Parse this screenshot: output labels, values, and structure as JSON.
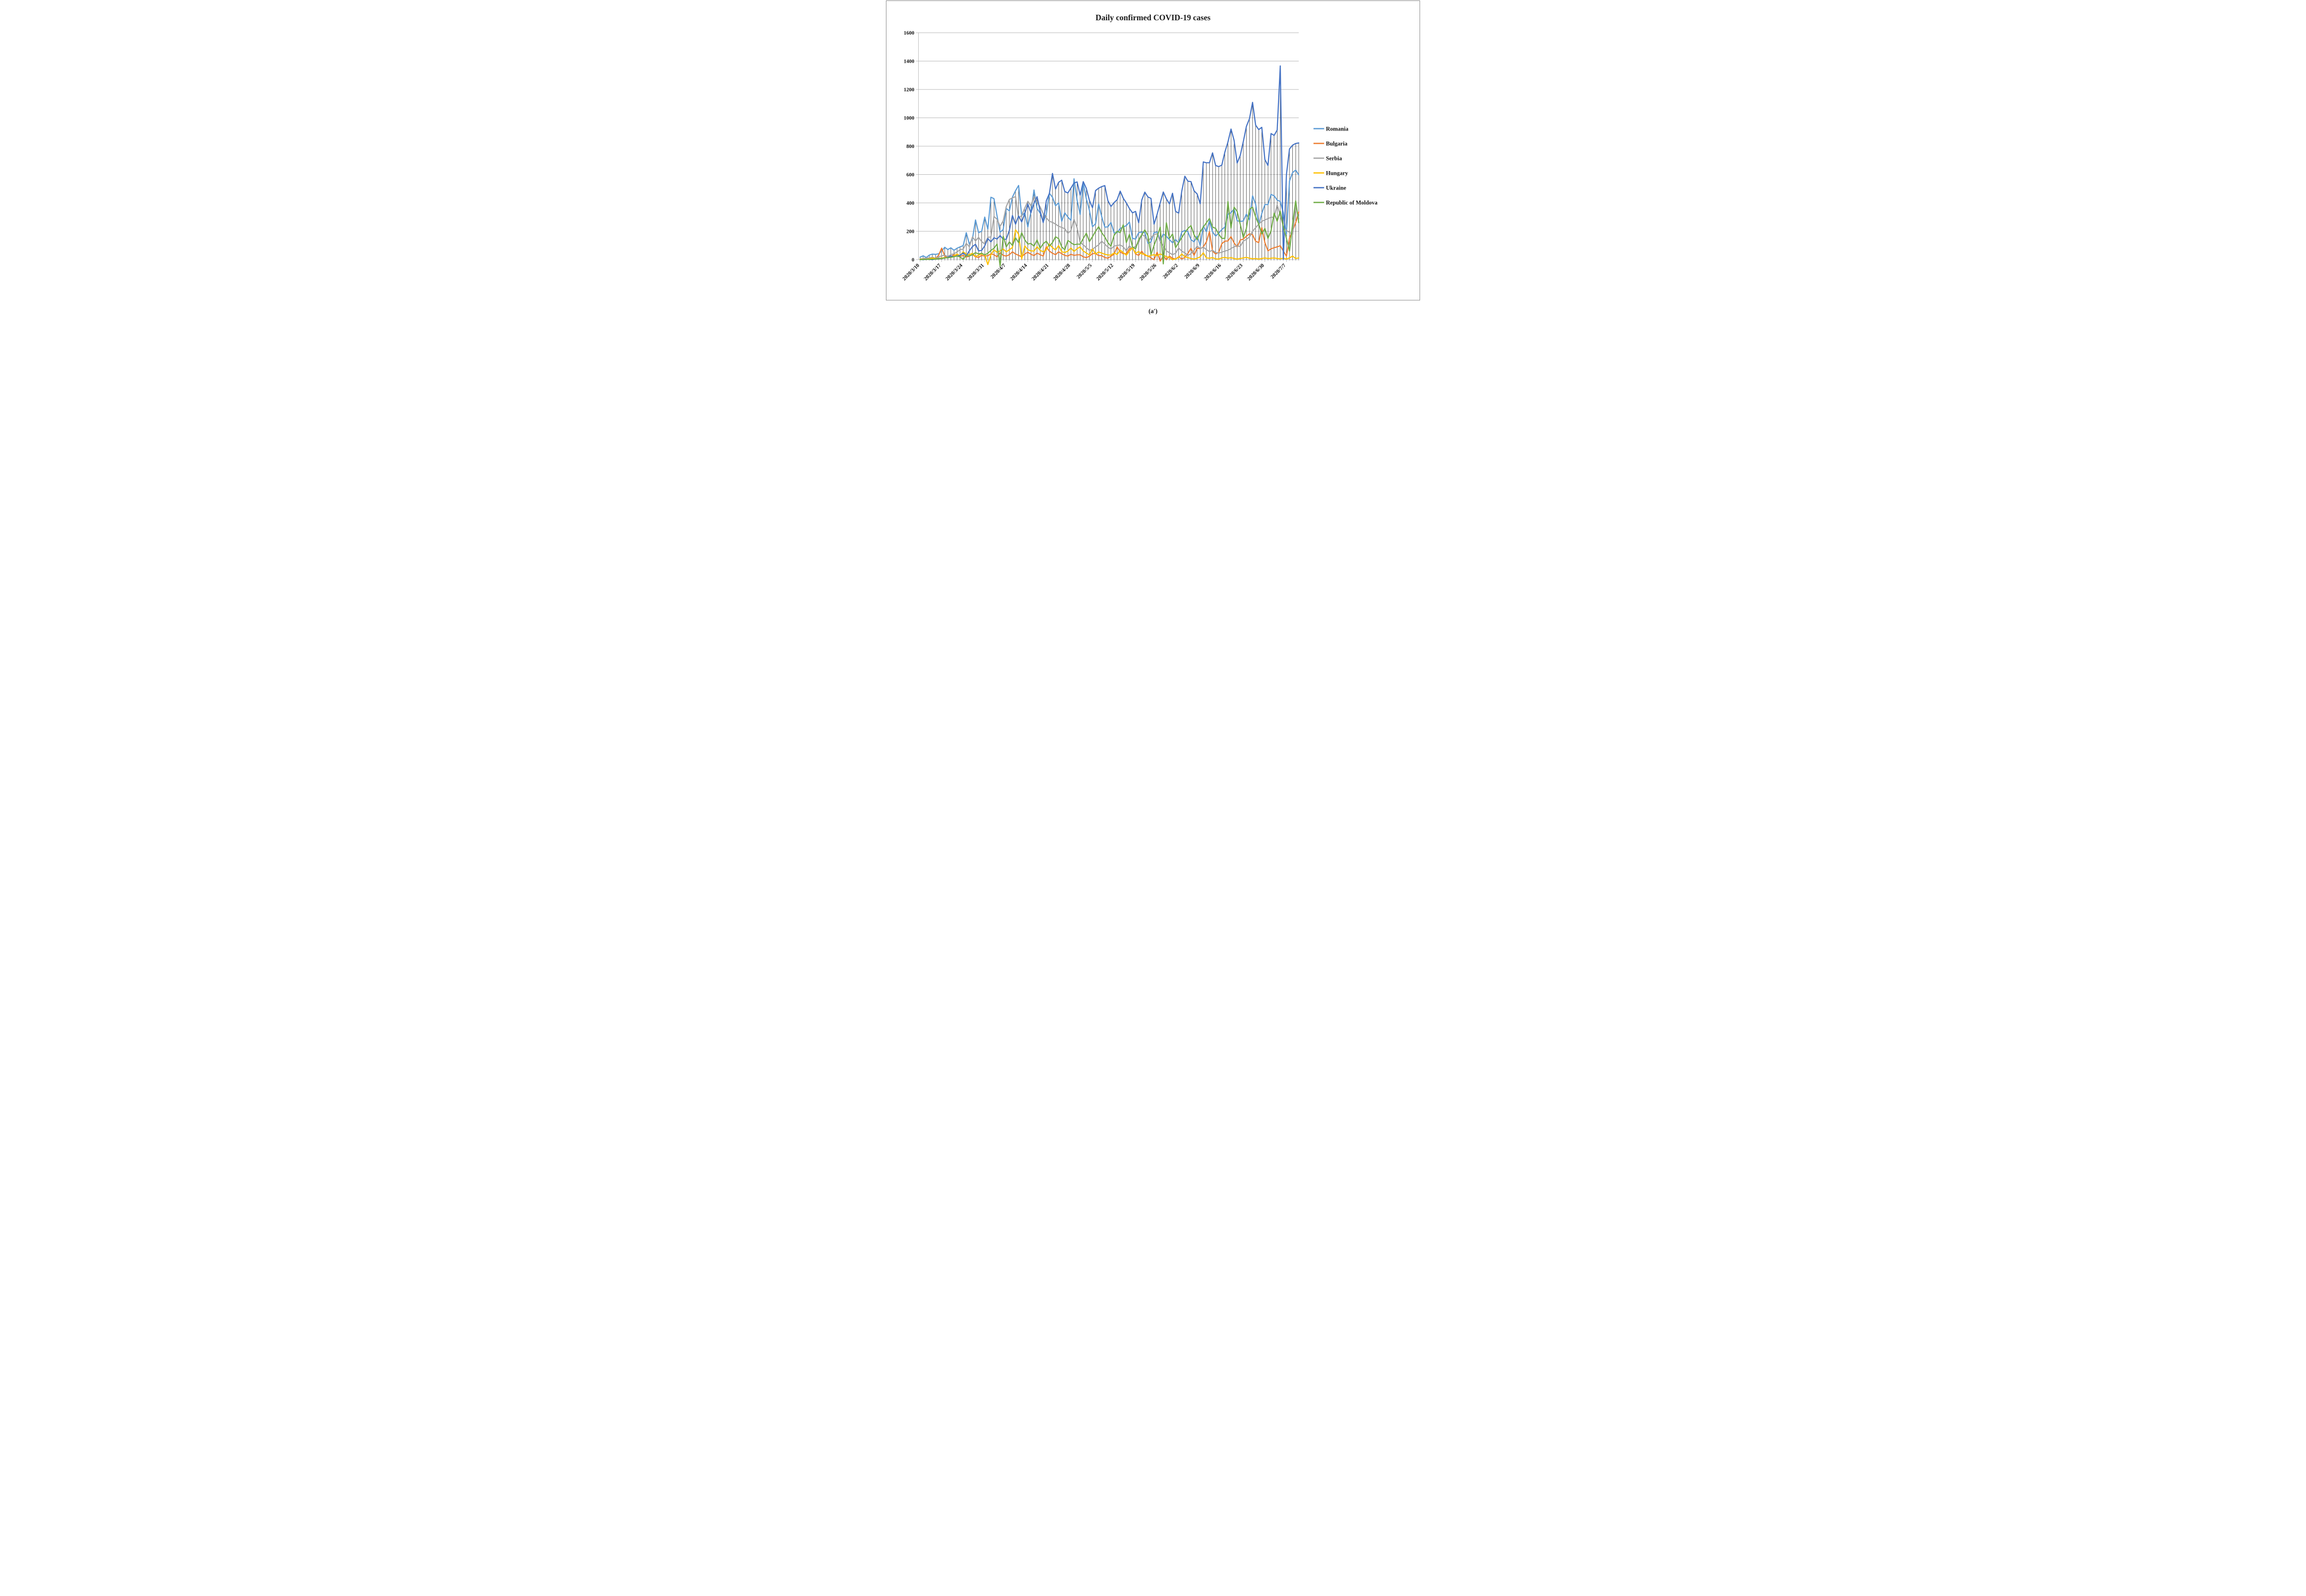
{
  "caption": "(a′)",
  "chart_data": {
    "type": "line",
    "title": "Daily confirmed COVID-19 cases",
    "xlabel": "",
    "ylabel": "",
    "ylim": [
      0,
      1600
    ],
    "y_step": 200,
    "grid": true,
    "drop_lines": true,
    "legend_position": "right",
    "x_label_rotation_deg": -45,
    "y_axis_tick_labels": [
      "0",
      "200",
      "400",
      "600",
      "800",
      "1000",
      "1200",
      "1400",
      "1600"
    ],
    "x_axis_tick_labels": [
      "2020/3/10",
      "2020/3/17",
      "2020/3/24",
      "2020/3/31",
      "2020/4/7",
      "2020/4/14",
      "2020/4/21",
      "2020/4/28",
      "2020/5/5",
      "2020/5/12",
      "2020/5/19",
      "2020/5/26",
      "2020/6/2",
      "2020/6/9",
      "2020/6/16",
      "2020/6/23",
      "2020/6/30",
      "2020/7/7"
    ],
    "x_tick_every_days": 7,
    "dates": [
      "2020/3/10",
      "2020/3/11",
      "2020/3/12",
      "2020/3/13",
      "2020/3/14",
      "2020/3/15",
      "2020/3/16",
      "2020/3/17",
      "2020/3/18",
      "2020/3/19",
      "2020/3/20",
      "2020/3/21",
      "2020/3/22",
      "2020/3/23",
      "2020/3/24",
      "2020/3/25",
      "2020/3/26",
      "2020/3/27",
      "2020/3/28",
      "2020/3/29",
      "2020/3/30",
      "2020/3/31",
      "2020/4/1",
      "2020/4/2",
      "2020/4/3",
      "2020/4/4",
      "2020/4/5",
      "2020/4/6",
      "2020/4/7",
      "2020/4/8",
      "2020/4/9",
      "2020/4/10",
      "2020/4/11",
      "2020/4/12",
      "2020/4/13",
      "2020/4/14",
      "2020/4/15",
      "2020/4/16",
      "2020/4/17",
      "2020/4/18",
      "2020/4/19",
      "2020/4/20",
      "2020/4/21",
      "2020/4/22",
      "2020/4/23",
      "2020/4/24",
      "2020/4/25",
      "2020/4/26",
      "2020/4/27",
      "2020/4/28",
      "2020/4/29",
      "2020/4/30",
      "2020/5/1",
      "2020/5/2",
      "2020/5/3",
      "2020/5/4",
      "2020/5/5",
      "2020/5/6",
      "2020/5/7",
      "2020/5/8",
      "2020/5/9",
      "2020/5/10",
      "2020/5/11",
      "2020/5/12",
      "2020/5/13",
      "2020/5/14",
      "2020/5/15",
      "2020/5/16",
      "2020/5/17",
      "2020/5/18",
      "2020/5/19",
      "2020/5/20",
      "2020/5/21",
      "2020/5/22",
      "2020/5/23",
      "2020/5/24",
      "2020/5/25",
      "2020/5/26",
      "2020/5/27",
      "2020/5/28",
      "2020/5/29",
      "2020/5/30",
      "2020/5/31",
      "2020/6/1",
      "2020/6/2",
      "2020/6/3",
      "2020/6/4",
      "2020/6/5",
      "2020/6/6",
      "2020/6/7",
      "2020/6/8",
      "2020/6/9",
      "2020/6/10",
      "2020/6/11",
      "2020/6/12",
      "2020/6/13",
      "2020/6/14",
      "2020/6/15",
      "2020/6/16",
      "2020/6/17",
      "2020/6/18",
      "2020/6/19",
      "2020/6/20",
      "2020/6/21",
      "2020/6/22",
      "2020/6/23",
      "2020/6/24",
      "2020/6/25",
      "2020/6/26",
      "2020/6/27",
      "2020/6/28",
      "2020/6/29",
      "2020/6/30",
      "2020/7/1",
      "2020/7/2",
      "2020/7/3",
      "2020/7/4",
      "2020/7/5",
      "2020/7/6",
      "2020/7/7",
      "2020/7/8",
      "2020/7/9",
      "2020/7/10",
      "2020/7/11"
    ],
    "series": [
      {
        "name": "Romania",
        "color": "#5B9BD5",
        "values": [
          17,
          27,
          15,
          32,
          39,
          37,
          41,
          59,
          87,
          71,
          83,
          66,
          80,
          90,
          99,
          190,
          110,
          145,
          280,
          190,
          200,
          300,
          215,
          440,
          430,
          308,
          193,
          212,
          360,
          344,
          441,
          486,
          523,
          310,
          330,
          230,
          337,
          491,
          360,
          328,
          266,
          320,
          468,
          440,
          380,
          400,
          270,
          330,
          300,
          277,
          570,
          420,
          318,
          538,
          430,
          349,
          232,
          253,
          392,
          302,
          229,
          231,
          262,
          190,
          190,
          220,
          230,
          240,
          265,
          150,
          145,
          190,
          195,
          190,
          115,
          125,
          190,
          195,
          135,
          180,
          165,
          141,
          119,
          141,
          119,
          195,
          206,
          196,
          141,
          125,
          166,
          99,
          237,
          197,
          275,
          196,
          166,
          186,
          212,
          230,
          320,
          331,
          358,
          274,
          269,
          273,
          321,
          280,
          450,
          390,
          242,
          326,
          388,
          388,
          460,
          450,
          420,
          410,
          330,
          180,
          555,
          614,
          631,
          598
        ]
      },
      {
        "name": "Bulgaria",
        "color": "#ED7D31",
        "values": [
          4,
          2,
          1,
          8,
          12,
          8,
          30,
          81,
          25,
          15,
          20,
          35,
          28,
          22,
          30,
          18,
          25,
          36,
          20,
          15,
          30,
          25,
          28,
          40,
          35,
          20,
          49,
          30,
          25,
          35,
          55,
          40,
          30,
          20,
          40,
          52,
          38,
          28,
          46,
          35,
          25,
          91,
          60,
          45,
          35,
          55,
          42,
          30,
          25,
          38,
          30,
          34,
          34,
          20,
          14,
          24,
          43,
          42,
          29,
          28,
          15,
          10,
          24,
          38,
          90,
          54,
          41,
          43,
          76,
          84,
          40,
          30,
          59,
          30,
          27,
          12,
          0,
          52,
          -10,
          25,
          0,
          25,
          10,
          4,
          20,
          5,
          15,
          44,
          80,
          30,
          80,
          77,
          90,
          125,
          197,
          60,
          40,
          51,
          112,
          130,
          132,
          162,
          118,
          90,
          138,
          145,
          165,
          182,
          175,
          130,
          120,
          226,
          120,
          62,
          76,
          84,
          90,
          98,
          60,
          25,
          152,
          203,
          260,
          336
        ]
      },
      {
        "name": "Serbia",
        "color": "#A5A5A5",
        "values": [
          5,
          7,
          12,
          11,
          18,
          9,
          20,
          26,
          32,
          21,
          36,
          41,
          54,
          71,
          74,
          115,
          91,
          160,
          132,
          157,
          127,
          111,
          157,
          160,
          305,
          284,
          235,
          274,
          375,
          424,
          435,
          445,
          290,
          312,
          364,
          411,
          380,
          445,
          408,
          372,
          324,
          295,
          270,
          263,
          250,
          236,
          227,
          218,
          185,
          205,
          285,
          225,
          120,
          105,
          84,
          66,
          72,
          90,
          104,
          130,
          110,
          88,
          75,
          95,
          100,
          104,
          90,
          62,
          98,
          75,
          96,
          120,
          177,
          164,
          129,
          155,
          177,
          182,
          127,
          98,
          62,
          48,
          35,
          45,
          82,
          60,
          48,
          30,
          42,
          66,
          95,
          78,
          88,
          70,
          57,
          66,
          50,
          46,
          52,
          60,
          66,
          78,
          91,
          96,
          93,
          130,
          143,
          160,
          200,
          225,
          250,
          270,
          280,
          289,
          299,
          299,
          387,
          310,
          234,
          205,
          193,
          178,
          381,
          288
        ]
      },
      {
        "name": "Hungary",
        "color": "#FFC000",
        "values": [
          4,
          2,
          3,
          6,
          12,
          7,
          9,
          11,
          15,
          14,
          18,
          25,
          39,
          28,
          55,
          39,
          35,
          45,
          22,
          32,
          40,
          35,
          -35,
          35,
          68,
          52,
          62,
          75,
          55,
          70,
          85,
          210,
          180,
          5,
          97,
          70,
          62,
          60,
          91,
          65,
          55,
          70,
          110,
          85,
          68,
          99,
          55,
          50,
          60,
          82,
          58,
          77,
          90,
          61,
          47,
          33,
          76,
          40,
          54,
          46,
          38,
          33,
          32,
          47,
          36,
          67,
          50,
          31,
          60,
          84,
          45,
          57,
          40,
          38,
          22,
          30,
          35,
          28,
          40,
          30,
          21,
          14,
          0,
          5,
          15,
          40,
          20,
          14,
          8,
          4,
          10,
          20,
          48,
          12,
          10,
          14,
          6,
          4,
          12,
          16,
          10,
          14,
          8,
          4,
          8,
          12,
          16,
          10,
          6,
          8,
          4,
          8,
          12,
          8,
          10,
          12,
          8,
          6,
          10,
          4,
          12,
          25,
          8,
          12
        ]
      },
      {
        "name": "Ukraine",
        "color": "#4472C4",
        "values": [
          1,
          0,
          2,
          2,
          0,
          4,
          8,
          7,
          12,
          15,
          26,
          20,
          26,
          30,
          47,
          26,
          62,
          92,
          108,
          62,
          65,
          97,
          149,
          125,
          154,
          145,
          170,
          143,
          144,
          206,
          311,
          250,
          308,
          266,
          325,
          392,
          330,
          397,
          444,
          343,
          261,
          415,
          467,
          608,
          498,
          545,
          560,
          480,
          470,
          505,
          540,
          548,
          455,
          550,
          502,
          418,
          366,
          487,
          504,
          515,
          522,
          416,
          375,
          402,
          422,
          483,
          433,
          400,
          360,
          330,
          340,
          260,
          420,
          476,
          442,
          432,
          250,
          320,
          400,
          477,
          429,
          393,
          468,
          340,
          328,
          483,
          588,
          553,
          550,
          485,
          463,
          394,
          689,
          683,
          683,
          753,
          664,
          656,
          666,
          758,
          829,
          921,
          841,
          681,
          735,
          833,
          940,
          994,
          1109,
          948,
          917,
          933,
          706,
          664,
          889,
          876,
          914,
          1366,
          2,
          600,
          781,
          807,
          819,
          823
        ]
      },
      {
        "name": "Republic of Moldova",
        "color": "#70AD47",
        "values": [
          0,
          1,
          2,
          2,
          3,
          4,
          6,
          7,
          12,
          13,
          16,
          20,
          26,
          18,
          2,
          30,
          25,
          35,
          49,
          40,
          45,
          33,
          45,
          65,
          80,
          110,
          -45,
          165,
          90,
          125,
          100,
          154,
          120,
          190,
          140,
          110,
          114,
          95,
          139,
          80,
          112,
          130,
          95,
          120,
          161,
          148,
          90,
          70,
          135,
          120,
          105,
          109,
          109,
          149,
          186,
          127,
          162,
          200,
          232,
          190,
          160,
          120,
          95,
          170,
          200,
          190,
          246,
          120,
          178,
          90,
          76,
          140,
          175,
          210,
          170,
          35,
          100,
          160,
          230,
          -30,
          260,
          150,
          180,
          85,
          120,
          155,
          190,
          220,
          240,
          175,
          140,
          195,
          230,
          260,
          290,
          230,
          220,
          180,
          150,
          150,
          410,
          222,
          370,
          340,
          250,
          156,
          220,
          355,
          370,
          300,
          250,
          180,
          220,
          150,
          203,
          328,
          271,
          342,
          232,
          150,
          60,
          250,
          415,
          260
        ]
      }
    ]
  }
}
